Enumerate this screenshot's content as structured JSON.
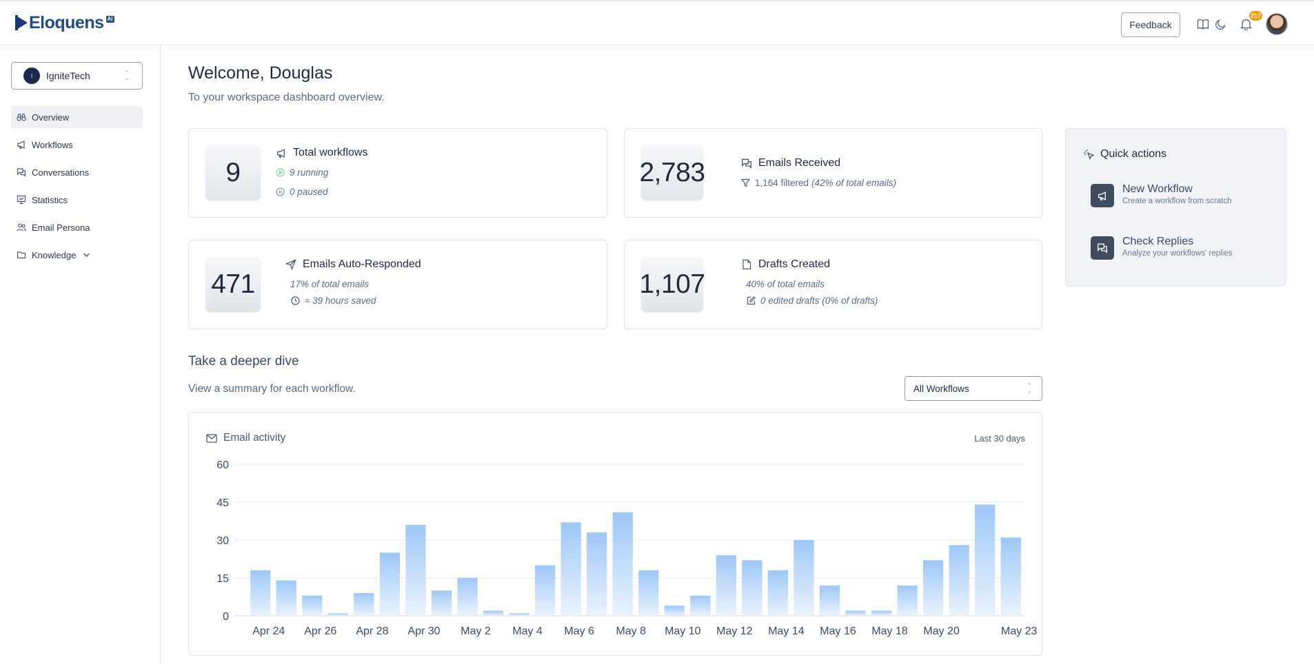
{
  "app": {
    "logo_text": "Eloquens",
    "logo_badge": "AI"
  },
  "header": {
    "feedback_label": "Feedback",
    "notification_count": "217",
    "icons": [
      "book-icon",
      "moon-icon",
      "bell-icon"
    ]
  },
  "sidebar": {
    "org": {
      "initial": "I",
      "name": "IgniteTech"
    },
    "items": [
      {
        "label": "Overview",
        "icon": "binoculars-icon",
        "active": true
      },
      {
        "label": "Workflows",
        "icon": "megaphone-icon",
        "active": false
      },
      {
        "label": "Conversations",
        "icon": "chat-icon",
        "active": false
      },
      {
        "label": "Statistics",
        "icon": "presentation-chart-icon",
        "active": false
      },
      {
        "label": "Email Persona",
        "icon": "users-icon",
        "active": false
      },
      {
        "label": "Knowledge",
        "icon": "folder-icon",
        "active": false
      }
    ]
  },
  "main": {
    "welcome": "Welcome, Douglas",
    "subtitle": "To your workspace dashboard overview."
  },
  "stats": {
    "workflows": {
      "value": "9",
      "title": "Total workflows",
      "running": "9 running",
      "paused": "0 paused"
    },
    "received": {
      "value": "2,783",
      "title": "Emails Received",
      "filtered": "1,164 filtered",
      "filtered_pct": "(42% of total emails)"
    },
    "auto": {
      "value": "471",
      "title": "Emails Auto-Responded",
      "pct": "17% of total emails",
      "saved": "≈ 39 hours saved"
    },
    "drafts": {
      "value": "1,107",
      "title": "Drafts Created",
      "pct": "40% of total emails",
      "edited": "0 edited drafts (0% of drafts)"
    }
  },
  "quick_actions": {
    "title": "Quick actions",
    "items": [
      {
        "title": "New Workflow",
        "desc": "Create a workflow from scratch"
      },
      {
        "title": "Check Replies",
        "desc": "Analyze your workflows' replies"
      }
    ]
  },
  "dive": {
    "title": "Take a deeper dive",
    "subtitle": "View a summary for each workflow.",
    "select_value": "All Workflows"
  },
  "chart_card": {
    "title": "Email activity",
    "period": "Last 30 days"
  },
  "colors": {
    "bar_top": "#9ec8f7",
    "bar_bottom": "#eaf3fd",
    "accent": "#1f4a8c",
    "badge": "#f59e0b"
  },
  "chart_data": {
    "type": "bar",
    "title": "Email activity",
    "categories": [
      "Apr 24",
      "Apr 25",
      "Apr 26",
      "Apr 27",
      "Apr 28",
      "Apr 29",
      "Apr 30",
      "May 1",
      "May 2",
      "May 3",
      "May 4",
      "May 5",
      "May 6",
      "May 7",
      "May 8",
      "May 9",
      "May 10",
      "May 11",
      "May 12",
      "May 13",
      "May 14",
      "May 15",
      "May 16",
      "May 17",
      "May 18",
      "May 19",
      "May 20",
      "May 21",
      "May 22",
      "May 23"
    ],
    "values": [
      18,
      14,
      8,
      1,
      9,
      25,
      36,
      10,
      15,
      2,
      1,
      20,
      37,
      33,
      41,
      18,
      4,
      8,
      24,
      22,
      18,
      30,
      12,
      2,
      2,
      12,
      22,
      28,
      44,
      31
    ],
    "x_tick_labels": [
      "Apr 24",
      "Apr 26",
      "Apr 28",
      "Apr 30",
      "May 2",
      "May 4",
      "May 6",
      "May 8",
      "May 10",
      "May 12",
      "May 14",
      "May 16",
      "May 18",
      "May 20",
      "May 23"
    ],
    "y_ticks": [
      0,
      15,
      30,
      45,
      60
    ],
    "ylim": [
      0,
      60
    ],
    "grid": true,
    "legend": "none"
  }
}
